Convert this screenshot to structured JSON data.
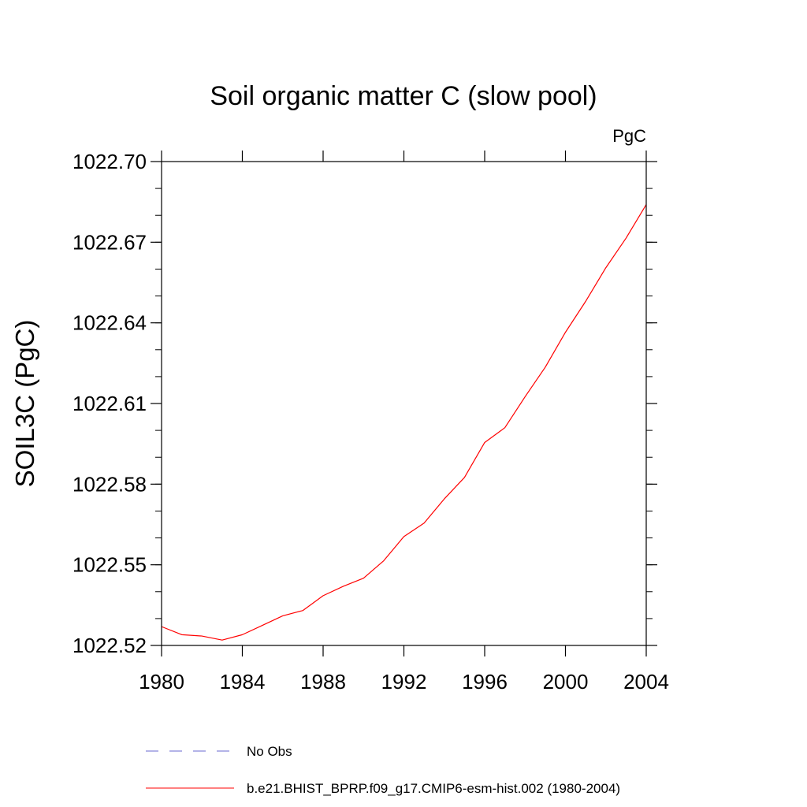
{
  "chart_data": {
    "type": "line",
    "title": "Soil organic matter C (slow pool)",
    "units": "PgC",
    "ylabel": "SOIL3C  (PgC)",
    "xlabel": "",
    "xlim": [
      1980,
      2004
    ],
    "ylim": [
      1022.52,
      1022.7
    ],
    "x_ticks": [
      1980,
      1984,
      1988,
      1992,
      1996,
      2000,
      2004
    ],
    "x_tick_labels": [
      "1980",
      "1984",
      "1988",
      "1992",
      "1996",
      "2000",
      "2004"
    ],
    "y_ticks": [
      1022.52,
      1022.55,
      1022.58,
      1022.61,
      1022.64,
      1022.67,
      1022.7
    ],
    "y_tick_labels": [
      "1022.52",
      "1022.55",
      "1022.58",
      "1022.61",
      "1022.64",
      "1022.67",
      "1022.70"
    ],
    "grid": false,
    "series": [
      {
        "name": "No Obs",
        "color": "#6a6ad0",
        "style": "dashed",
        "x": [],
        "values": []
      },
      {
        "name": "b.e21.BHIST_BPRP.f09_g17.CMIP6-esm-hist.002 (1980-2004)",
        "color": "#ff0000",
        "style": "solid",
        "x": [
          1980,
          1981,
          1982,
          1983,
          1984,
          1985,
          1986,
          1987,
          1988,
          1989,
          1990,
          1991,
          1992,
          1993,
          1994,
          1995,
          1996,
          1997,
          1998,
          1999,
          2000,
          2001,
          2002,
          2003,
          2004
        ],
        "values": [
          1022.527,
          1022.524,
          1022.5235,
          1022.522,
          1022.524,
          1022.5275,
          1022.531,
          1022.533,
          1022.5385,
          1022.542,
          1022.545,
          1022.5515,
          1022.5605,
          1022.5655,
          1022.5745,
          1022.5825,
          1022.5955,
          1022.601,
          1022.6125,
          1022.6235,
          1022.6365,
          1022.648,
          1022.6605,
          1022.6715,
          1022.684
        ]
      }
    ],
    "legend": "bottom"
  }
}
